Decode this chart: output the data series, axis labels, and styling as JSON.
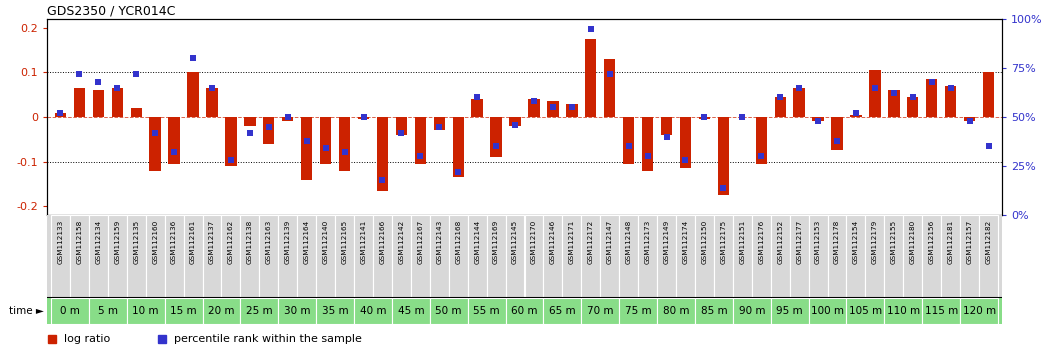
{
  "title": "GDS2350 / YCR014C",
  "gsm_labels": [
    "GSM112133",
    "GSM112158",
    "GSM112134",
    "GSM112159",
    "GSM112135",
    "GSM112160",
    "GSM112136",
    "GSM112161",
    "GSM112137",
    "GSM112162",
    "GSM112138",
    "GSM112163",
    "GSM112139",
    "GSM112164",
    "GSM112140",
    "GSM112165",
    "GSM112141",
    "GSM112166",
    "GSM112142",
    "GSM112167",
    "GSM112143",
    "GSM112168",
    "GSM112144",
    "GSM112169",
    "GSM112145",
    "GSM112170",
    "GSM112146",
    "GSM112171",
    "GSM112172",
    "GSM112147",
    "GSM112148",
    "GSM112173",
    "GSM112149",
    "GSM112174",
    "GSM112150",
    "GSM112175",
    "GSM112151",
    "GSM112176",
    "GSM112152",
    "GSM112177",
    "GSM112153",
    "GSM112178",
    "GSM112154",
    "GSM112179",
    "GSM112155",
    "GSM112180",
    "GSM112156",
    "GSM112181",
    "GSM112157",
    "GSM112182"
  ],
  "time_labels": [
    "0 m",
    "5 m",
    "10 m",
    "15 m",
    "20 m",
    "25 m",
    "30 m",
    "35 m",
    "40 m",
    "45 m",
    "50 m",
    "55 m",
    "60 m",
    "65 m",
    "70 m",
    "75 m",
    "80 m",
    "85 m",
    "90 m",
    "95 m",
    "100 m",
    "105 m",
    "110 m",
    "115 m",
    "120 m"
  ],
  "log_ratio": [
    0.01,
    0.065,
    0.06,
    0.065,
    0.02,
    -0.12,
    -0.105,
    0.1,
    0.065,
    -0.11,
    -0.02,
    -0.06,
    -0.01,
    -0.14,
    -0.105,
    -0.12,
    -0.005,
    -0.165,
    -0.04,
    -0.105,
    -0.03,
    -0.135,
    0.04,
    -0.09,
    -0.02,
    0.04,
    0.035,
    0.03,
    0.175,
    0.13,
    -0.105,
    -0.12,
    -0.04,
    -0.115,
    -0.005,
    -0.175,
    0.0,
    -0.105,
    0.045,
    0.065,
    -0.01,
    -0.075,
    0.005,
    0.105,
    0.06,
    0.045,
    0.085,
    0.07,
    -0.01,
    0.1
  ],
  "percentile_rank": [
    52,
    72,
    68,
    65,
    72,
    42,
    32,
    80,
    65,
    28,
    42,
    45,
    50,
    38,
    34,
    32,
    50,
    18,
    42,
    30,
    45,
    22,
    60,
    35,
    46,
    58,
    55,
    55,
    95,
    72,
    35,
    30,
    40,
    28,
    50,
    14,
    50,
    30,
    60,
    65,
    48,
    38,
    52,
    65,
    62,
    60,
    68,
    65,
    48,
    35
  ],
  "bar_color": "#cc2200",
  "dot_color": "#3333cc",
  "plot_bg": "#ffffff",
  "ylim": [
    -0.22,
    0.22
  ],
  "y2lim": [
    0,
    100
  ],
  "gsm_bg": "#d8d8d8",
  "time_bg": "#88dd88",
  "time_bg_alt": "#aaddaa"
}
